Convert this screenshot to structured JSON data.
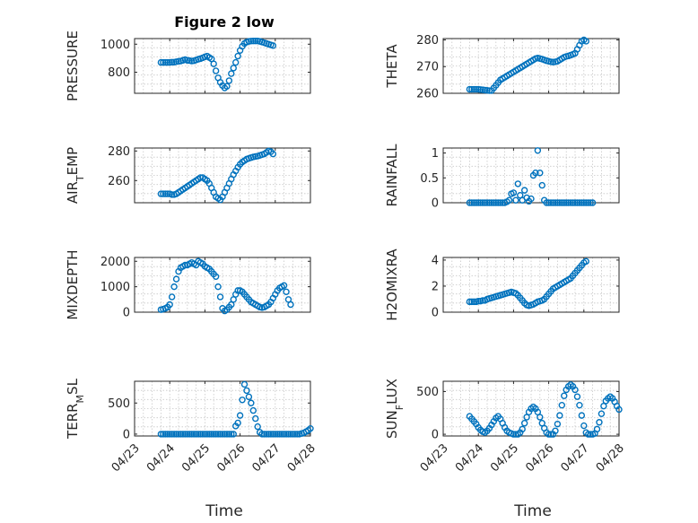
{
  "window": {
    "title": "Figure 2 low"
  },
  "chart_data": [
    {
      "type": "scatter",
      "id": "pressure",
      "title": "Figure 2 low",
      "ylabel": "PRESSURE",
      "ylim": [
        650,
        1040
      ],
      "yticks": [
        800,
        1000
      ],
      "xlim": [
        "2005-04-23",
        "2005-04-28"
      ],
      "grid": true,
      "series": [
        {
          "x_start": "2005-04-23T18:00",
          "x_step_hours": 1.5,
          "values": [
            870,
            870,
            870,
            870,
            870,
            872,
            872,
            875,
            878,
            880,
            885,
            890,
            885,
            883,
            880,
            882,
            887,
            893,
            897,
            903,
            910,
            915,
            905,
            895,
            860,
            810,
            760,
            728,
            705,
            688,
            700,
            740,
            790,
            830,
            870,
            915,
            955,
            985,
            1005,
            1015,
            1020,
            1022,
            1023,
            1023,
            1023,
            1020,
            1015,
            1010,
            1005,
            1000,
            995,
            990
          ]
        }
      ]
    },
    {
      "type": "scatter",
      "id": "theta",
      "ylabel": "THETA",
      "ylim": [
        260,
        280.5
      ],
      "yticks": [
        260,
        270,
        280
      ],
      "xlim": [
        "2005-04-23",
        "2005-04-28"
      ],
      "grid": true,
      "series": [
        {
          "x_start": "2005-04-23T18:00",
          "x_step_hours": 1.5,
          "values": [
            261.5,
            261.5,
            261.5,
            261.5,
            261.5,
            261.4,
            261.3,
            261.2,
            261.1,
            261.0,
            261.0,
            262.0,
            263.0,
            264.0,
            265.0,
            265.5,
            266.0,
            266.5,
            267.0,
            267.5,
            268.0,
            268.5,
            269.0,
            269.5,
            270.0,
            270.5,
            271.0,
            271.5,
            272.0,
            272.5,
            273.0,
            273.2,
            273.0,
            272.8,
            272.5,
            272.2,
            272.0,
            271.8,
            271.7,
            271.8,
            272.0,
            272.5,
            273.0,
            273.5,
            273.8,
            274.0,
            274.3,
            274.6,
            275.0,
            276.5,
            278.0,
            279.5,
            280.0,
            279.5
          ]
        }
      ]
    },
    {
      "type": "scatter",
      "id": "air-temp",
      "ylabel": "AIR_TEMP",
      "ylim": [
        245,
        282
      ],
      "yticks": [
        260,
        280
      ],
      "xlim": [
        "2005-04-23",
        "2005-04-28"
      ],
      "grid": true,
      "series": [
        {
          "x_start": "2005-04-23T18:00",
          "x_step_hours": 1.5,
          "values": [
            251,
            251,
            251,
            251,
            251,
            250.5,
            250.5,
            251,
            252,
            253,
            254,
            255,
            256,
            257,
            258,
            259,
            260,
            261,
            262,
            262,
            261,
            260,
            258,
            255,
            252,
            249,
            248,
            247,
            249,
            252,
            255,
            258,
            261,
            264,
            266.5,
            269,
            271,
            272.5,
            273.5,
            274.5,
            275,
            275.5,
            276,
            276.3,
            276.5,
            277,
            277.5,
            278,
            279,
            280,
            279.5,
            278
          ]
        }
      ]
    },
    {
      "type": "scatter",
      "id": "rainfall",
      "ylabel": "RAINFALL",
      "ylim": [
        0,
        1.1
      ],
      "yticks": [
        0,
        0.5,
        1
      ],
      "xlim": [
        "2005-04-23",
        "2005-04-28"
      ],
      "grid": true,
      "series": [
        {
          "x_start": "2005-04-23T18:00",
          "x_step_hours": 1.5,
          "values": [
            0,
            0,
            0,
            0,
            0,
            0,
            0,
            0,
            0,
            0,
            0,
            0,
            0,
            0,
            0,
            0,
            0,
            0.02,
            0.05,
            0.18,
            0.2,
            0.05,
            0.38,
            0.15,
            0.05,
            0.25,
            0.1,
            0.03,
            0.08,
            0.55,
            0.6,
            1.05,
            0.6,
            0.35,
            0.05,
            0,
            0,
            0,
            0,
            0,
            0,
            0,
            0,
            0,
            0,
            0,
            0,
            0,
            0,
            0,
            0,
            0,
            0,
            0,
            0,
            0,
            0
          ]
        }
      ]
    },
    {
      "type": "scatter",
      "id": "mixdepth",
      "ylabel": "MIXDEPTH",
      "ylim": [
        0,
        2150
      ],
      "yticks": [
        0,
        1000,
        2000
      ],
      "xlim": [
        "2005-04-23",
        "2005-04-28"
      ],
      "grid": true,
      "series": [
        {
          "x_start": "2005-04-23T18:00",
          "x_step_hours": 1.5,
          "values": [
            100,
            120,
            150,
            200,
            300,
            600,
            1000,
            1300,
            1600,
            1750,
            1800,
            1850,
            1850,
            1900,
            1950,
            1900,
            1850,
            2000,
            1950,
            1900,
            1800,
            1750,
            1700,
            1600,
            1500,
            1400,
            1000,
            600,
            150,
            50,
            100,
            200,
            300,
            500,
            700,
            850,
            850,
            800,
            700,
            600,
            500,
            400,
            350,
            300,
            250,
            200,
            180,
            200,
            250,
            300,
            400,
            550,
            700,
            850,
            950,
            1000,
            1050,
            800,
            500,
            300
          ]
        }
      ]
    },
    {
      "type": "scatter",
      "id": "h2omixratio",
      "ylabel": "H2OMIXRA",
      "ylim": [
        0,
        4.2
      ],
      "yticks": [
        0,
        2,
        4
      ],
      "xlim": [
        "2005-04-23",
        "2005-04-28"
      ],
      "grid": true,
      "series": [
        {
          "x_start": "2005-04-23T18:00",
          "x_step_hours": 1.5,
          "values": [
            0.8,
            0.8,
            0.8,
            0.8,
            0.85,
            0.85,
            0.9,
            0.9,
            1.0,
            1.05,
            1.1,
            1.15,
            1.2,
            1.25,
            1.3,
            1.35,
            1.4,
            1.45,
            1.5,
            1.55,
            1.5,
            1.45,
            1.3,
            1.1,
            0.9,
            0.7,
            0.55,
            0.5,
            0.55,
            0.6,
            0.7,
            0.8,
            0.85,
            0.9,
            1.0,
            1.2,
            1.4,
            1.6,
            1.8,
            1.9,
            2.0,
            2.1,
            2.2,
            2.3,
            2.4,
            2.5,
            2.6,
            2.8,
            3.0,
            3.2,
            3.4,
            3.6,
            3.8,
            3.9
          ]
        }
      ]
    },
    {
      "type": "scatter",
      "id": "terr-msl",
      "ylabel": "TERR_MSL",
      "ylim": [
        -30,
        850
      ],
      "yticks": [
        0,
        500
      ],
      "xlim": [
        "2005-04-23",
        "2005-04-28"
      ],
      "grid": true,
      "series": [
        {
          "x_start": "2005-04-23T18:00",
          "x_step_hours": 1.5,
          "values": [
            0,
            0,
            0,
            0,
            0,
            0,
            0,
            0,
            0,
            0,
            0,
            0,
            0,
            0,
            0,
            0,
            0,
            0,
            0,
            0,
            0,
            0,
            0,
            0,
            0,
            0,
            0,
            0,
            0,
            0,
            0,
            0,
            0,
            0,
            130,
            180,
            300,
            550,
            800,
            700,
            600,
            500,
            380,
            250,
            120,
            30,
            0,
            0,
            0,
            0,
            0,
            0,
            0,
            0,
            0,
            0,
            0,
            0,
            0,
            0,
            0,
            0,
            0,
            0,
            10,
            20,
            40,
            60,
            90,
            120,
            140,
            150,
            150
          ]
        }
      ]
    },
    {
      "type": "scatter",
      "id": "sun-flux",
      "ylabel": "SUN_FLUX",
      "ylim": [
        -20,
        620
      ],
      "yticks": [
        0,
        500
      ],
      "xlim": [
        "2005-04-23",
        "2005-04-28"
      ],
      "grid": true,
      "series": [
        {
          "x_start": "2005-04-23T18:00",
          "x_step_hours": 1.5,
          "values": [
            210,
            180,
            150,
            120,
            80,
            50,
            30,
            20,
            40,
            70,
            110,
            150,
            190,
            210,
            180,
            130,
            80,
            40,
            20,
            10,
            0,
            0,
            0,
            20,
            60,
            130,
            200,
            260,
            300,
            320,
            300,
            260,
            200,
            130,
            70,
            20,
            0,
            0,
            0,
            40,
            120,
            220,
            340,
            450,
            520,
            560,
            580,
            560,
            520,
            440,
            340,
            220,
            100,
            20,
            0,
            0,
            0,
            10,
            60,
            140,
            240,
            330,
            390,
            420,
            440,
            420,
            380,
            330,
            290,
            260,
            230,
            210
          ]
        }
      ]
    }
  ],
  "x_axis": {
    "ticks": [
      "04/23",
      "04/24",
      "04/25",
      "04/26",
      "04/27",
      "04/28"
    ],
    "label": "Time"
  },
  "colors": {
    "marker": "#0072BD",
    "axis": "#262626",
    "grid": "#c8c8c8"
  }
}
